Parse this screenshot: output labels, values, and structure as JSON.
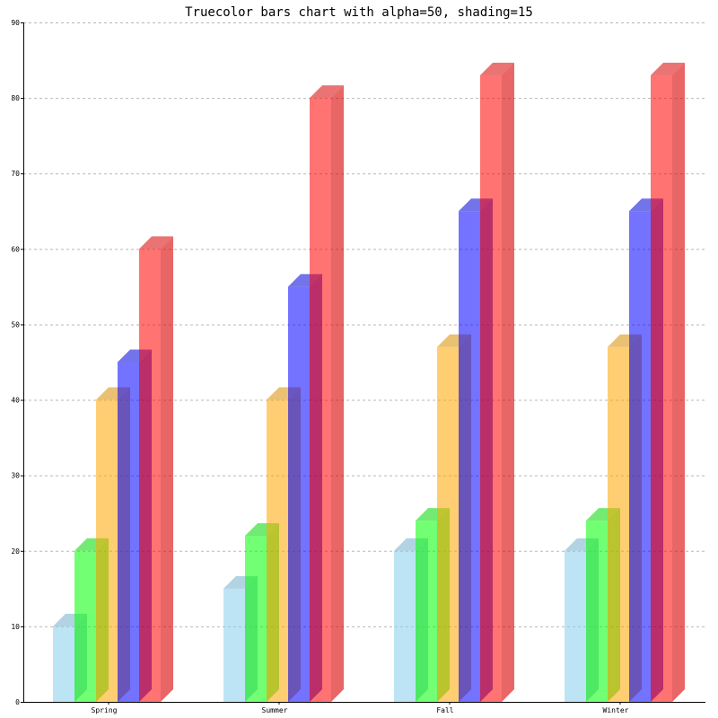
{
  "chart_data": {
    "type": "bar",
    "title": "Truecolor bars chart with alpha=50, shading=15",
    "xlabel": "",
    "ylabel": "",
    "ylim": [
      0,
      90
    ],
    "yticks": [
      "0",
      "10",
      "20",
      "30",
      "40",
      "50",
      "60",
      "70",
      "80",
      "90"
    ],
    "grid": true,
    "legend": "none",
    "categories": [
      "Spring",
      "Summer",
      "Fall",
      "Winter"
    ],
    "series": [
      {
        "color": "#87ceeb",
        "values": [
          10,
          15,
          20,
          20
        ]
      },
      {
        "color": "#00ff00",
        "values": [
          20,
          22,
          24,
          24
        ]
      },
      {
        "color": "#ffa500",
        "values": [
          40,
          40,
          47,
          47
        ]
      },
      {
        "color": "#0000ff",
        "values": [
          45,
          55,
          65,
          65
        ]
      },
      {
        "color": "#ff0000",
        "values": [
          60,
          80,
          83,
          83
        ]
      }
    ]
  }
}
